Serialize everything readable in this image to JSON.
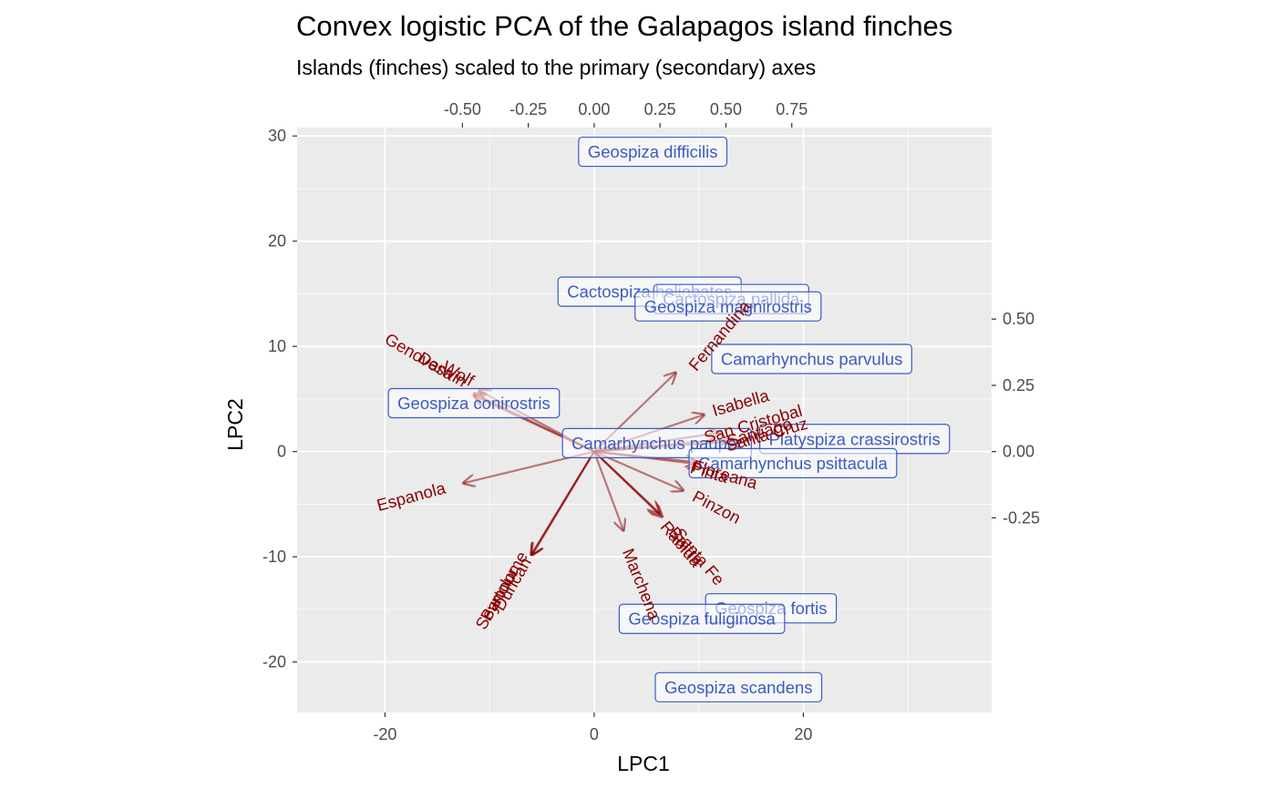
{
  "chart_data": {
    "type": "scatter",
    "title": "Convex logistic PCA of the Galapagos island finches",
    "subtitle": "Islands (finches) scaled to the primary (secondary) axes",
    "xlabel": "LPC1",
    "ylabel": "LPC2",
    "xlim": [
      -28.4,
      38.0
    ],
    "ylim": [
      -24.8,
      30.8
    ],
    "x_ticks": [
      -20,
      0,
      20
    ],
    "y_ticks": [
      -20,
      -10,
      0,
      10,
      20,
      30
    ],
    "secondary_x_ticks": [
      "-0.50",
      "-0.25",
      "0.00",
      "0.25",
      "0.50",
      "0.75"
    ],
    "secondary_y_ticks": [
      "-0.25",
      "0.00",
      "0.25",
      "0.50"
    ],
    "secondary_x_values": [
      -0.5,
      -0.25,
      0.0,
      0.25,
      0.5,
      0.75
    ],
    "secondary_y_values": [
      -0.25,
      0.0,
      0.25,
      0.5
    ],
    "secondary_scale": 0.0397,
    "grid": true,
    "colors": {
      "panel": "#ebebeb",
      "grid": "#ffffff",
      "finch": "#3b5bc4",
      "island": "#8b0000"
    },
    "finches": [
      {
        "name": "Geospiza difficilis",
        "x": 5.6,
        "y": 28.5
      },
      {
        "name": "Cactospiza heliobates",
        "x": 5.3,
        "y": 15.2
      },
      {
        "name": "Cactospiza pallida",
        "x": 13.1,
        "y": 14.5
      },
      {
        "name": "Geospiza magnirostris",
        "x": 12.8,
        "y": 13.8
      },
      {
        "name": "Camarhynchus parvulus",
        "x": 20.8,
        "y": 8.8
      },
      {
        "name": "Geospiza conirostris",
        "x": -11.5,
        "y": 4.6
      },
      {
        "name": "Camarhynchus pauper",
        "x": 6.0,
        "y": 0.8
      },
      {
        "name": "Platyspiza crassirostris",
        "x": 24.9,
        "y": 1.2
      },
      {
        "name": "Camarhynchus psittacula",
        "x": 19.0,
        "y": -1.1
      },
      {
        "name": "Geospiza fortis",
        "x": 16.9,
        "y": -14.9
      },
      {
        "name": "Geospiza fuliginosa",
        "x": 10.3,
        "y": -15.9
      },
      {
        "name": "Geospiza scandens",
        "x": 13.8,
        "y": -22.4
      }
    ],
    "islands": [
      {
        "name": "Genovesa",
        "x": -11.0,
        "y": 5.8,
        "lx": -16.7,
        "ly": 9.0,
        "angle": 30
      },
      {
        "name": "Darwin",
        "x": -11.5,
        "y": 5.5,
        "lx": -14.5,
        "ly": 7.8,
        "angle": 30
      },
      {
        "name": "Wolf",
        "x": -11.5,
        "y": 5.3,
        "lx": -13.0,
        "ly": 7.4,
        "angle": 30
      },
      {
        "name": "Fernandina",
        "x": 7.8,
        "y": 7.5,
        "lx": 12.0,
        "ly": 11.0,
        "angle": -50
      },
      {
        "name": "Isabella",
        "x": 10.5,
        "y": 3.5,
        "lx": 14.0,
        "ly": 4.6,
        "angle": -16
      },
      {
        "name": "San Cristobal",
        "x": 12.0,
        "y": 1.8,
        "lx": 15.2,
        "ly": 2.6,
        "angle": -16
      },
      {
        "name": "Santa Cruz",
        "x": 13.8,
        "y": 1.0,
        "lx": 16.5,
        "ly": 1.6,
        "angle": -16
      },
      {
        "name": "Santiago",
        "x": 13.0,
        "y": 1.2,
        "lx": 15.8,
        "ly": 1.8,
        "angle": -16
      },
      {
        "name": "Floreana",
        "x": 10.0,
        "y": -1.2,
        "lx": 12.5,
        "ly": -2.2,
        "angle": 16
      },
      {
        "name": "Pinta",
        "x": 9.8,
        "y": -1.0,
        "lx": 11.0,
        "ly": -2.0,
        "angle": 16
      },
      {
        "name": "Pinzon",
        "x": 8.5,
        "y": -3.7,
        "lx": 11.7,
        "ly": -5.3,
        "angle": 28
      },
      {
        "name": "Espanola",
        "x": -12.5,
        "y": -3.0,
        "lx": -17.5,
        "ly": -4.3,
        "angle": -15
      },
      {
        "name": "Rabida",
        "x": 6.3,
        "y": -6.0,
        "lx": 8.3,
        "ly": -8.8,
        "angle": 50
      },
      {
        "name": "Baltra",
        "x": 6.5,
        "y": -6.2,
        "lx": 8.8,
        "ly": -9.0,
        "angle": 50
      },
      {
        "name": "Santa Fe",
        "x": 6.2,
        "y": -5.8,
        "lx": 10.0,
        "ly": -10.0,
        "angle": 50
      },
      {
        "name": "Marchena",
        "x": 2.8,
        "y": -7.5,
        "lx": 4.5,
        "ly": -12.6,
        "angle": 68
      },
      {
        "name": "Seymour",
        "x": -6.0,
        "y": -9.8,
        "lx": -9.3,
        "ly": -14.0,
        "angle": -60
      },
      {
        "name": "Bartolome",
        "x": -6.0,
        "y": -9.8,
        "lx": -8.6,
        "ly": -12.8,
        "angle": -60
      },
      {
        "name": "Duncan",
        "x": -5.9,
        "y": -9.8,
        "lx": -7.8,
        "ly": -12.6,
        "angle": -60
      }
    ]
  }
}
